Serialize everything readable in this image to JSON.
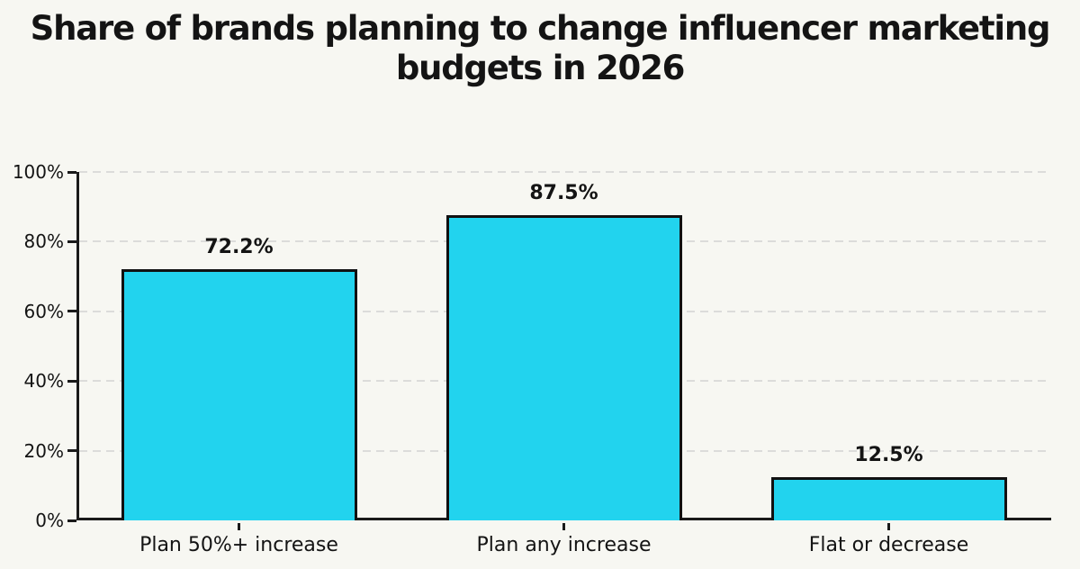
{
  "page": {
    "background_color": "#f7f7f2"
  },
  "chart_data": {
    "type": "bar",
    "title": "Share of brands planning to change influencer marketing budgets in 2026",
    "title_lines": [
      "Share of brands planning to change influencer marketing",
      "budgets in 2026"
    ],
    "categories": [
      "Plan 50%+ increase",
      "Plan any increase",
      "Flat or decrease"
    ],
    "values": [
      72.2,
      87.5,
      12.5
    ],
    "value_labels": [
      "72.2%",
      "87.5%",
      "12.5%"
    ],
    "xlabel": "",
    "ylabel": "",
    "ylim": [
      0,
      100
    ],
    "yticks": [
      0,
      20,
      40,
      60,
      80,
      100
    ],
    "ytick_labels": [
      "0%",
      "20%",
      "40%",
      "60%",
      "80%",
      "100%"
    ],
    "grid": "horizontal dashed gridlines at each y tick",
    "legend_position": "none",
    "colors": {
      "bar_fill": "#22d3ee",
      "bar_border": "#111111",
      "axis": "#1a1a1a",
      "gridline": "#dcdcda",
      "text": "#141414",
      "background": "#f7f7f2"
    }
  }
}
